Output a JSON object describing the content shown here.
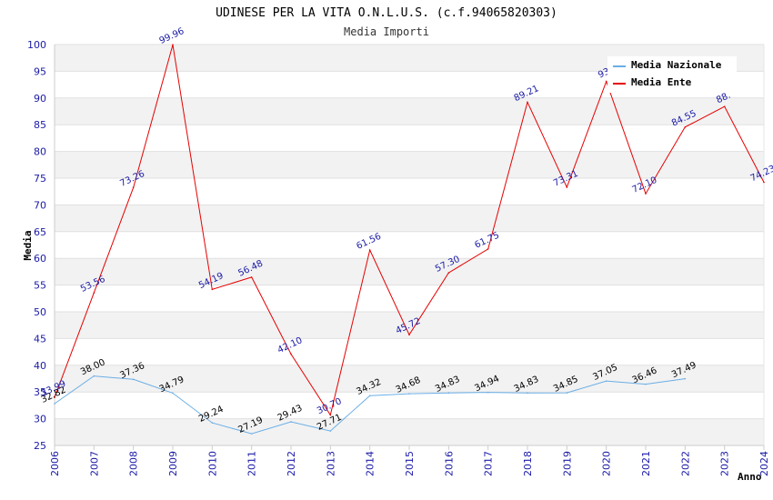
{
  "chart_data": {
    "type": "line",
    "title": "UDINESE PER LA VITA O.N.L.U.S. (c.f.94065820303)",
    "subtitle": "Media Importi",
    "xlabel": "Anno",
    "ylabel": "Media",
    "ylim": [
      25,
      100
    ],
    "yticks": [
      "25",
      "30",
      "35",
      "40",
      "45",
      "50",
      "55",
      "60",
      "65",
      "70",
      "75",
      "80",
      "85",
      "90",
      "95",
      "100"
    ],
    "categories": [
      "2006",
      "2007",
      "2008",
      "2009",
      "2010",
      "2011",
      "2012",
      "2013",
      "2014",
      "2015",
      "2016",
      "2017",
      "2018",
      "2019",
      "2020",
      "2021",
      "2022",
      "2023",
      "2024"
    ],
    "grid": true,
    "legend_position": "top-right",
    "series": [
      {
        "name": "Media Nazionale",
        "color": "#6aaee6",
        "values": [
          32.82,
          38.0,
          37.36,
          34.79,
          29.24,
          27.19,
          29.43,
          27.71,
          34.32,
          34.68,
          34.83,
          34.94,
          34.83,
          34.85,
          37.05,
          36.46,
          37.49,
          null,
          null
        ],
        "labels": [
          "32.82",
          "38.00",
          "37.36",
          "34.79",
          "29.24",
          "27.19",
          "29.43",
          "27.71",
          "34.32",
          "34.68",
          "34.83",
          "34.94",
          "34.83",
          "34.85",
          "37.05",
          "36.46",
          "37.49",
          null,
          null
        ]
      },
      {
        "name": "Media Ente",
        "color": "#e60000",
        "values": [
          33.99,
          53.56,
          73.26,
          99.96,
          54.19,
          56.48,
          42.1,
          30.7,
          61.56,
          45.72,
          57.3,
          61.75,
          89.21,
          73.31,
          93.1,
          72.1,
          84.55,
          88.4,
          74.23
        ],
        "labels": [
          "33.99",
          "53.56",
          "73.26",
          "99.96",
          "54.19",
          "56.48",
          "42.10",
          "30.70",
          "61.56",
          "45.72",
          "57.30",
          "61.75",
          "89.21",
          "73.31",
          "93.",
          "72.10",
          "84.55",
          "88.",
          "74.23"
        ]
      }
    ]
  }
}
